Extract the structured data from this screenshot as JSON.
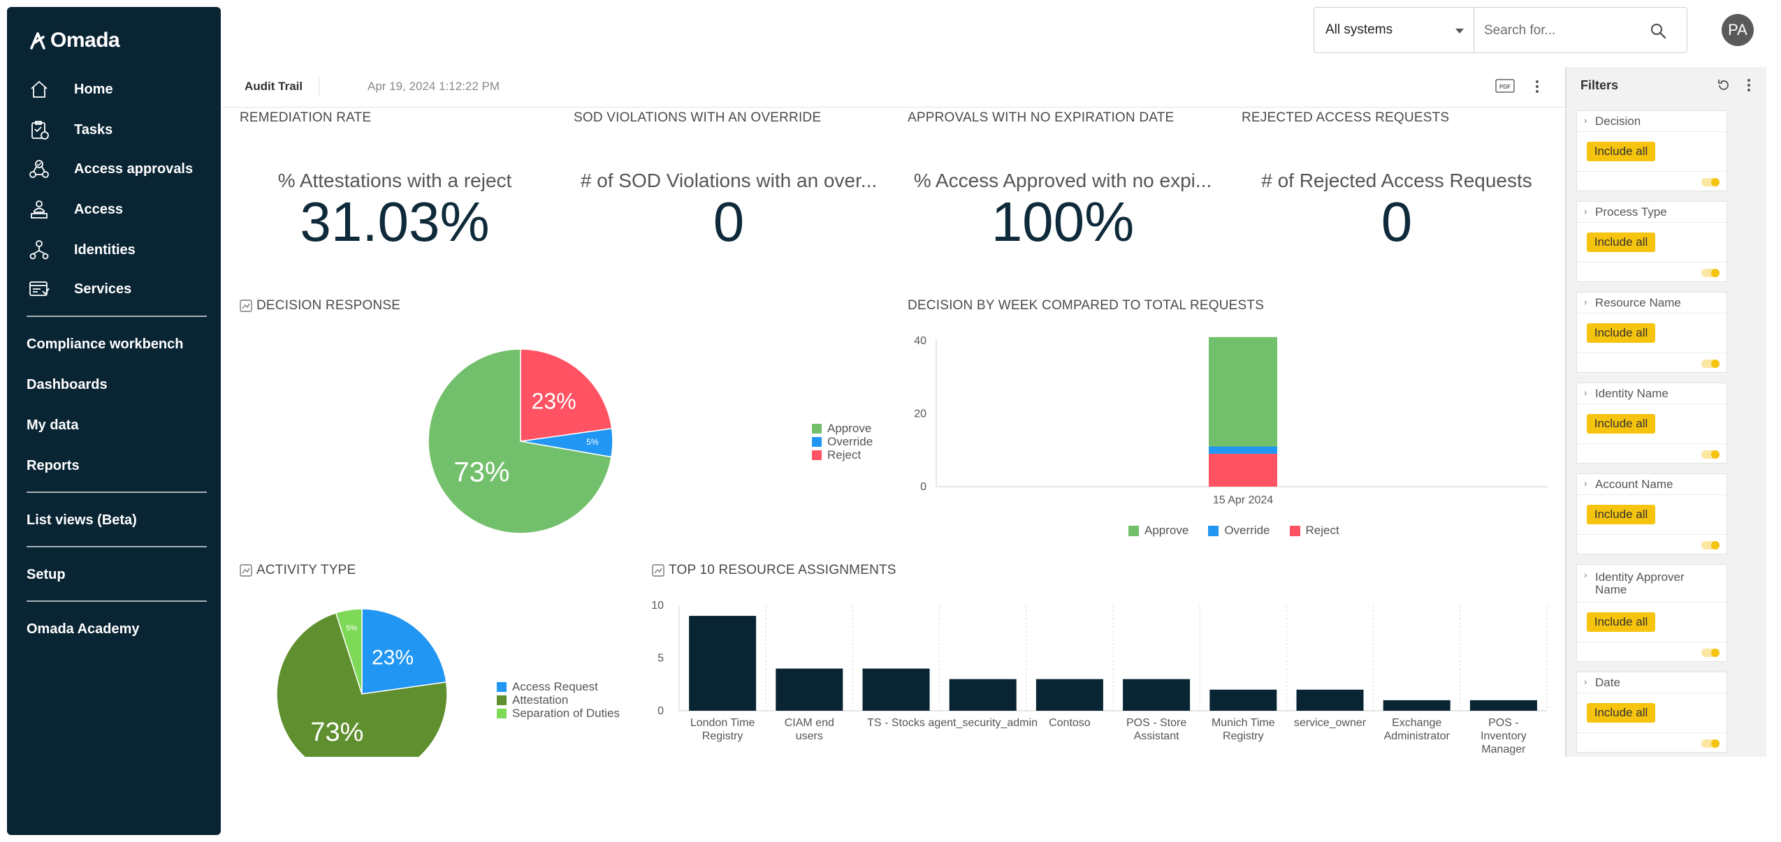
{
  "app": {
    "name": "Omada"
  },
  "nav": {
    "items": [
      {
        "label": "Home",
        "icon": "home-icon"
      },
      {
        "label": "Tasks",
        "icon": "tasks-icon"
      },
      {
        "label": "Access approvals",
        "icon": "access-approvals-icon"
      },
      {
        "label": "Access",
        "icon": "access-icon"
      },
      {
        "label": "Identities",
        "icon": "identities-icon"
      },
      {
        "label": "Services",
        "icon": "services-icon"
      }
    ],
    "links": {
      "compliance": "Compliance workbench",
      "dashboards": "Dashboards",
      "my_data": "My data",
      "reports": "Reports",
      "list_views": "List views (Beta)",
      "setup": "Setup",
      "academy": "Omada Academy"
    }
  },
  "topbar": {
    "system_select": "All systems",
    "search_placeholder": "Search for...",
    "avatar_initials": "PA"
  },
  "dashboard": {
    "tab": "Audit Trail",
    "timestamp": "Apr 19, 2024 1:12:22 PM",
    "kpis": [
      {
        "title": "REMEDIATION RATE",
        "subtitle": "% Attestations with a reject",
        "value": "31.03%"
      },
      {
        "title": "SOD VIOLATIONS WITH AN OVERRIDE",
        "subtitle": "# of SOD Violations with an over...",
        "value": "0"
      },
      {
        "title": "APPROVALS WITH NO EXPIRATION DATE",
        "subtitle": "% Access Approved with no expi...",
        "value": "100%"
      },
      {
        "title": "REJECTED ACCESS REQUESTS",
        "subtitle": "# of Rejected Access Requests",
        "value": "0"
      }
    ],
    "sections": {
      "decision_response": "DECISION RESPONSE",
      "decision_by_week": "DECISION BY WEEK COMPARED TO TOTAL REQUESTS",
      "activity_type": "ACTIVITY TYPE",
      "top10": "TOP 10 RESOURCE ASSIGNMENTS"
    }
  },
  "colors": {
    "approve": "#73c06c",
    "override": "#2196f3",
    "reject": "#ff5262",
    "access_request": "#2196f3",
    "attestation": "#5f8f2e",
    "sod": "#7ed957",
    "bar": "#092433",
    "sidebar": "#092433",
    "include_all": "#f6c30e"
  },
  "chart_data": [
    {
      "type": "pie",
      "title": "DECISION RESPONSE",
      "categories": [
        "Approve",
        "Override",
        "Reject"
      ],
      "values": [
        73,
        5,
        23
      ],
      "labels": [
        "73%",
        "5%",
        "23%"
      ]
    },
    {
      "type": "bar",
      "stacked": true,
      "title": "DECISION BY WEEK COMPARED TO TOTAL REQUESTS",
      "categories": [
        "15 Apr 2024"
      ],
      "series": [
        {
          "name": "Approve",
          "values": [
            30
          ]
        },
        {
          "name": "Override",
          "values": [
            2
          ]
        },
        {
          "name": "Reject",
          "values": [
            9
          ]
        }
      ],
      "ylim": [
        0,
        40
      ],
      "yticks": [
        "0",
        "20",
        "40"
      ],
      "grid": false,
      "legend": "bottom"
    },
    {
      "type": "pie",
      "title": "ACTIVITY TYPE",
      "categories": [
        "Access Request",
        "Attestation",
        "Separation of Duties"
      ],
      "values": [
        23,
        73,
        5
      ],
      "labels": [
        "23%",
        "73%",
        "5%"
      ]
    },
    {
      "type": "bar",
      "title": "TOP 10 RESOURCE ASSIGNMENTS",
      "categories": [
        "London Time Registry",
        "CIAM end users",
        "TS - Stocks",
        "agent_security_admin",
        "Contoso",
        "POS - Store Assistant",
        "Munich Time Registry",
        "service_owner",
        "Exchange Administrator",
        "POS - Inventory Manager"
      ],
      "values": [
        9,
        4,
        4,
        3,
        3,
        3,
        2,
        2,
        1,
        1
      ],
      "ylim": [
        0,
        10
      ],
      "yticks": [
        "0",
        "5",
        "10"
      ],
      "grid": true
    }
  ],
  "filters": {
    "title": "Filters",
    "include_label": "Include all",
    "items": [
      {
        "name": "Decision"
      },
      {
        "name": "Process Type"
      },
      {
        "name": "Resource Name"
      },
      {
        "name": "Identity Name"
      },
      {
        "name": "Account Name"
      },
      {
        "name": "Identity Approver Name"
      },
      {
        "name": "Date"
      }
    ]
  }
}
